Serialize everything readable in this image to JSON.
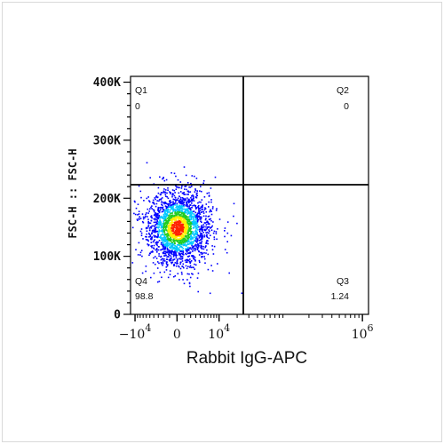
{
  "chart_data": {
    "type": "scatter",
    "subtype": "flow-cytometry-density-quadrant",
    "xlabel": "Rabbit IgG-APC",
    "ylabel": "FSC-H :: FSC-H",
    "x_scale": "biexponential",
    "x_ticks": [
      {
        "base": "−10",
        "exp": "4",
        "value": -10000
      },
      {
        "base": "0",
        "exp": "",
        "value": 0
      },
      {
        "base": "10",
        "exp": "4",
        "value": 10000
      },
      {
        "base": "10",
        "exp": "6",
        "value": 1000000
      }
    ],
    "y_ticks": [
      {
        "label": "0",
        "value": 0
      },
      {
        "label": "100K",
        "value": 100000
      },
      {
        "label": "200K",
        "value": 200000
      },
      {
        "label": "300K",
        "value": 300000
      },
      {
        "label": "400K",
        "value": 400000
      }
    ],
    "ylim": [
      0,
      410000
    ],
    "gate": {
      "x": 400,
      "y": 220000
    },
    "quadrants": [
      {
        "name": "Q1",
        "value": "0",
        "pos": "top-left"
      },
      {
        "name": "Q2",
        "value": "0",
        "pos": "top-right"
      },
      {
        "name": "Q3",
        "value": "1.24",
        "pos": "bottom-right"
      },
      {
        "name": "Q4",
        "value": "98.8",
        "pos": "bottom-left"
      }
    ],
    "population": {
      "center_x": 0,
      "center_y": 150000,
      "spread_y": 30000
    },
    "colors": {
      "low": "#0000ff",
      "mid_low": "#00c8ff",
      "mid": "#22cc22",
      "mid_high": "#ffee00",
      "high": "#ff2200"
    }
  }
}
